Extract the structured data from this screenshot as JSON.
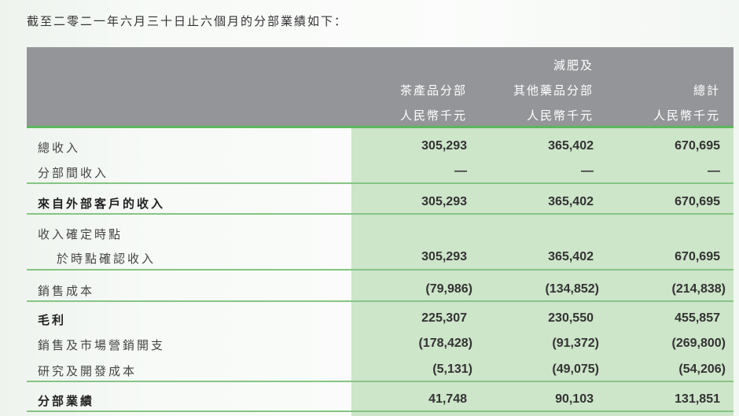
{
  "intro": "截至二零二一年六月三十日止六個月的分部業績如下：",
  "header": {
    "col1": {
      "line2": "茶產品分部",
      "unit": "人民幣千元"
    },
    "col2": {
      "line1": "減肥及",
      "line2": "其他藥品分部",
      "unit": "人民幣千元"
    },
    "col3": {
      "line2": "總計",
      "unit": "人民幣千元"
    }
  },
  "rows": [
    {
      "label": "總收入",
      "values": [
        "305,293",
        "365,402",
        "670,695"
      ]
    },
    {
      "label": "分部間收入",
      "values": [
        "—",
        "—",
        "—"
      ]
    },
    {
      "label": "來自外部客戶的收入",
      "values": [
        "305,293",
        "365,402",
        "670,695"
      ]
    },
    {
      "label": "收入確定時點",
      "values": [
        "",
        "",
        ""
      ]
    },
    {
      "label": "於時點確認收入",
      "values": [
        "305,293",
        "365,402",
        "670,695"
      ]
    },
    {
      "label": "銷售成本",
      "values": [
        "(79,986)",
        "(134,852)",
        "(214,838)"
      ]
    },
    {
      "label": "毛利",
      "values": [
        "225,307",
        "230,550",
        "455,857"
      ]
    },
    {
      "label": "銷售及市場營銷開支",
      "values": [
        "(178,428)",
        "(91,372)",
        "(269,800)"
      ]
    },
    {
      "label": "研究及開發成本",
      "values": [
        "(5,131)",
        "(49,075)",
        "(54,206)"
      ]
    },
    {
      "label": "分部業績",
      "values": [
        "41,748",
        "90,103",
        "131,851"
      ]
    }
  ],
  "colors": {
    "header_bg": "#939598",
    "accent_green": "#5cb85c",
    "highlight_bg": "#cde5c9"
  }
}
